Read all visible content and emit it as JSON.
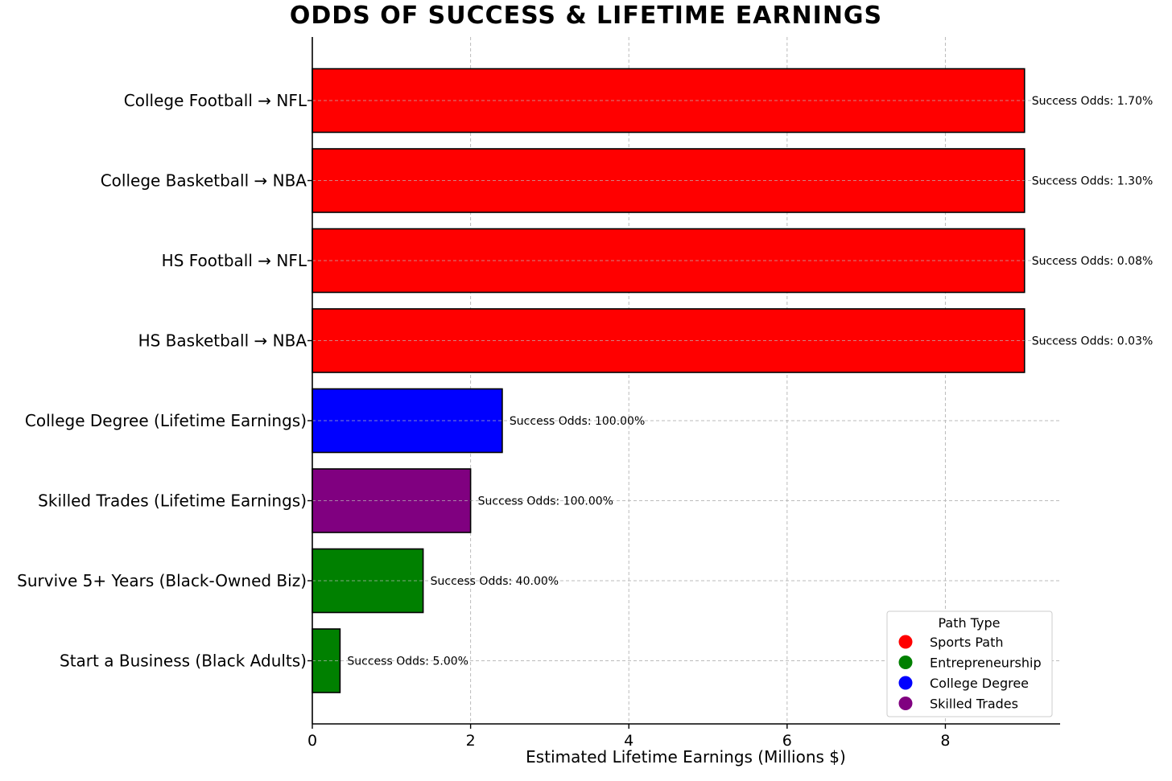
{
  "chart_data": {
    "type": "bar",
    "orientation": "horizontal",
    "title": "ODDS OF SUCCESS & LIFETIME EARNINGS",
    "xlabel": "Estimated Lifetime Earnings (Millions $)",
    "ylabel": "",
    "xlim": [
      0,
      9.45
    ],
    "xticks": [
      0,
      2,
      4,
      6,
      8
    ],
    "grid": true,
    "categories": [
      "College Football → NFL",
      "College Basketball → NBA",
      "HS Football → NFL",
      "HS Basketball → NBA",
      "College Degree (Lifetime Earnings)",
      "Skilled Trades (Lifetime Earnings)",
      "Survive 5+ Years (Black-Owned Biz)",
      "Start a Business (Black Adults)"
    ],
    "values": [
      9.0,
      9.0,
      9.0,
      9.0,
      2.4,
      2.0,
      1.4,
      0.35
    ],
    "path_types": [
      "Sports Path",
      "Sports Path",
      "Sports Path",
      "Sports Path",
      "College Degree",
      "Skilled Trades",
      "Entrepreneurship",
      "Entrepreneurship"
    ],
    "data_labels": [
      "Success Odds: 1.70%",
      "Success Odds: 1.30%",
      "Success Odds: 0.08%",
      "Success Odds: 0.03%",
      "Success Odds: 100.00%",
      "Success Odds: 100.00%",
      "Success Odds: 40.00%",
      "Success Odds: 5.00%"
    ],
    "legend": {
      "title": "Path Type",
      "location": "lower-right",
      "entries": [
        {
          "name": "Sports Path",
          "color": "#ff0000"
        },
        {
          "name": "Entrepreneurship",
          "color": "#008000"
        },
        {
          "name": "College Degree",
          "color": "#0000ff"
        },
        {
          "name": "Skilled Trades",
          "color": "#800080"
        }
      ]
    }
  }
}
